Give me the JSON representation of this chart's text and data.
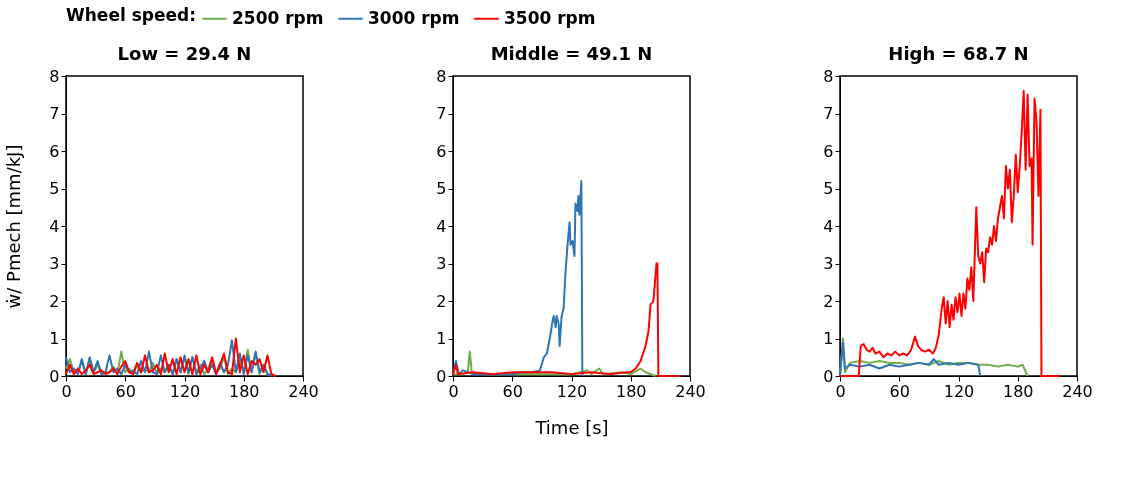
{
  "chart_data": [
    {
      "type": "line",
      "title": "Low = 29.4 N",
      "ylabel": "ẇ/ Pmech [mm/kJ]",
      "legend_title": "Wheel speed:",
      "legend": "top",
      "grid": false,
      "xlim": [
        0,
        240
      ],
      "xticks": [
        0,
        60,
        120,
        180,
        240
      ],
      "ylim": [
        0,
        8
      ],
      "yticks": [
        0,
        1,
        2,
        3,
        4,
        5,
        6,
        7,
        8
      ],
      "series": [
        {
          "name": "2500 rpm",
          "color": "#70ad47",
          "x": [
            0,
            4,
            8,
            12,
            16,
            20,
            24,
            28,
            32,
            36,
            40,
            44,
            48,
            52,
            56,
            60,
            64,
            68,
            72,
            76,
            80,
            84,
            88,
            92,
            96,
            100,
            104,
            108,
            112,
            116,
            120,
            124,
            128,
            132,
            136,
            140,
            144,
            148,
            152,
            156,
            160,
            164,
            168,
            172,
            176,
            180,
            184,
            188,
            192,
            196,
            200,
            204,
            208,
            212
          ],
          "values": [
            0.2,
            0.45,
            0.1,
            0.1,
            0.4,
            0.05,
            0.45,
            0.1,
            0.3,
            0.05,
            0.1,
            0.1,
            0.25,
            0.05,
            0.65,
            0.1,
            0.2,
            0.05,
            0.3,
            0.1,
            0.2,
            0.1,
            0.35,
            0.05,
            0.2,
            0.1,
            0.3,
            0.05,
            0.45,
            0.1,
            0.5,
            0.05,
            0.5,
            0.1,
            0.3,
            0.05,
            0.2,
            0.45,
            0.1,
            0.2,
            0.5,
            0.05,
            0.2,
            0.1,
            0.4,
            0.1,
            0.7,
            0.1,
            0.6,
            0.05,
            0.3,
            0.05,
            0.05,
            0
          ]
        },
        {
          "name": "3000 rpm",
          "color": "#2e75b6",
          "x": [
            0,
            4,
            8,
            12,
            16,
            20,
            24,
            28,
            32,
            36,
            40,
            44,
            48,
            52,
            56,
            60,
            64,
            68,
            72,
            76,
            80,
            84,
            88,
            92,
            96,
            100,
            104,
            108,
            112,
            116,
            120,
            124,
            128,
            132,
            136,
            140,
            144,
            148,
            152,
            156,
            160,
            164,
            168,
            172,
            176,
            180,
            184,
            188,
            192,
            196,
            200,
            204,
            208
          ],
          "values": [
            0.5,
            0.1,
            0.2,
            0.05,
            0.45,
            0.05,
            0.5,
            0.1,
            0.4,
            0.05,
            0.1,
            0.55,
            0.1,
            0.2,
            0.05,
            0.3,
            0.1,
            0.15,
            0.05,
            0.4,
            0.1,
            0.65,
            0.1,
            0.05,
            0.55,
            0.1,
            0.3,
            0.05,
            0.45,
            0.1,
            0.55,
            0.1,
            0.5,
            0.05,
            0.2,
            0.4,
            0.1,
            0.3,
            0.05,
            0.35,
            0.1,
            0.3,
            0.95,
            0.1,
            0.6,
            0.05,
            0.55,
            0.1,
            0.65,
            0.1,
            0.3,
            0.05,
            0
          ]
        },
        {
          "name": "3500 rpm",
          "color": "#ff0000",
          "x": [
            0,
            4,
            8,
            12,
            16,
            20,
            24,
            28,
            32,
            36,
            40,
            44,
            48,
            52,
            56,
            60,
            64,
            68,
            72,
            76,
            80,
            84,
            88,
            92,
            96,
            100,
            104,
            108,
            112,
            116,
            120,
            124,
            128,
            132,
            136,
            140,
            144,
            148,
            152,
            156,
            160,
            164,
            168,
            172,
            176,
            180,
            184,
            188,
            192,
            196,
            200,
            204,
            208,
            212
          ],
          "values": [
            0.05,
            0.3,
            0.05,
            0.2,
            0.05,
            0.15,
            0.3,
            0.05,
            0.1,
            0.15,
            0.05,
            0.1,
            0.2,
            0.05,
            0.25,
            0.4,
            0.1,
            0.05,
            0.35,
            0.1,
            0.55,
            0.1,
            0.15,
            0.3,
            0.05,
            0.6,
            0.1,
            0.45,
            0.05,
            0.5,
            0.1,
            0.45,
            0.05,
            0.55,
            0.05,
            0.3,
            0.1,
            0.5,
            0.05,
            0.3,
            0.6,
            0.1,
            0.05,
            1.0,
            0.1,
            0.55,
            0.05,
            0.4,
            0.3,
            0.45,
            0.1,
            0.55,
            0.05,
            0
          ]
        }
      ]
    },
    {
      "type": "line",
      "title": "Middle = 49.1 N",
      "xlabel": "Time [s]",
      "legend": "top",
      "grid": false,
      "xlim": [
        0,
        240
      ],
      "xticks": [
        0,
        60,
        120,
        180,
        240
      ],
      "ylim": [
        0,
        8
      ],
      "yticks": [
        0,
        1,
        2,
        3,
        4,
        5,
        6,
        7,
        8
      ],
      "series": [
        {
          "name": "2500 rpm",
          "color": "#70ad47",
          "x": [
            0,
            10,
            15,
            17,
            19,
            30,
            60,
            90,
            120,
            136,
            140,
            148,
            152,
            170,
            180,
            190,
            195,
            205
          ],
          "values": [
            0.05,
            0.05,
            0.1,
            0.65,
            0.1,
            0.05,
            0.05,
            0.05,
            0.05,
            0.15,
            0.05,
            0.2,
            0.05,
            0.1,
            0.05,
            0.2,
            0.1,
            0
          ]
        },
        {
          "name": "3000 rpm",
          "color": "#2e75b6",
          "x": [
            0,
            3,
            6,
            10,
            20,
            30,
            40,
            50,
            60,
            70,
            80,
            88,
            92,
            95,
            98,
            101,
            102,
            104,
            105,
            107,
            108,
            110,
            112,
            114,
            116,
            118,
            119,
            121,
            123,
            124,
            126,
            127,
            128,
            130,
            131
          ],
          "values": [
            0.05,
            0.4,
            0.05,
            0.15,
            0.05,
            0.05,
            0.05,
            0.05,
            0.05,
            0.1,
            0.1,
            0.15,
            0.5,
            0.6,
            1.0,
            1.5,
            1.6,
            1.3,
            1.6,
            1.4,
            0.8,
            1.6,
            1.8,
            2.8,
            3.5,
            4.1,
            3.5,
            3.6,
            3.2,
            4.6,
            4.4,
            4.8,
            4.3,
            5.2,
            0
          ]
        },
        {
          "name": "3500 rpm",
          "color": "#ff0000",
          "x": [
            0,
            3,
            5,
            20,
            40,
            60,
            80,
            100,
            120,
            140,
            160,
            175,
            180,
            185,
            190,
            195,
            198,
            200,
            203,
            206,
            207,
            208,
            230
          ],
          "values": [
            0.05,
            0.3,
            0.05,
            0.1,
            0.05,
            0.1,
            0.1,
            0.1,
            0.05,
            0.1,
            0.05,
            0.1,
            0.1,
            0.2,
            0.4,
            0.8,
            1.2,
            1.9,
            2.0,
            3.0,
            3.0,
            0,
            0
          ]
        }
      ]
    },
    {
      "type": "line",
      "title": "High = 68.7 N",
      "legend": "top",
      "grid": false,
      "xlim": [
        0,
        240
      ],
      "xticks": [
        0,
        60,
        120,
        180,
        240
      ],
      "ylim": [
        0,
        8
      ],
      "yticks": [
        0,
        1,
        2,
        3,
        4,
        5,
        6,
        7,
        8
      ],
      "series": [
        {
          "name": "2500 rpm",
          "color": "#70ad47",
          "x": [
            0,
            3,
            5,
            10,
            20,
            30,
            40,
            50,
            60,
            70,
            80,
            90,
            100,
            110,
            120,
            130,
            140,
            150,
            160,
            170,
            180,
            185,
            190
          ],
          "values": [
            0,
            1.0,
            0.1,
            0.35,
            0.4,
            0.35,
            0.4,
            0.35,
            0.35,
            0.3,
            0.35,
            0.3,
            0.4,
            0.3,
            0.35,
            0.35,
            0.3,
            0.3,
            0.25,
            0.3,
            0.25,
            0.3,
            0
          ]
        },
        {
          "name": "3000 rpm",
          "color": "#2e75b6",
          "x": [
            0,
            3,
            5,
            10,
            20,
            30,
            40,
            50,
            60,
            70,
            80,
            90,
            95,
            100,
            110,
            120,
            130,
            140,
            142
          ],
          "values": [
            0,
            0.9,
            0.2,
            0.3,
            0.25,
            0.3,
            0.2,
            0.3,
            0.25,
            0.3,
            0.35,
            0.3,
            0.45,
            0.3,
            0.35,
            0.3,
            0.35,
            0.3,
            0
          ]
        },
        {
          "name": "3500 rpm",
          "color": "#ff0000",
          "x": [
            0,
            19,
            21,
            24,
            27,
            30,
            33,
            36,
            40,
            44,
            48,
            52,
            56,
            60,
            64,
            68,
            72,
            76,
            79,
            82,
            86,
            90,
            94,
            97,
            100,
            103,
            105,
            107,
            109,
            111,
            113,
            115,
            117,
            119,
            121,
            123,
            125,
            127,
            129,
            131,
            133,
            135,
            138,
            140,
            142,
            144,
            146,
            148,
            150,
            152,
            154,
            156,
            158,
            160,
            162,
            164,
            166,
            168,
            170,
            172,
            174,
            176,
            178,
            180,
            182,
            184,
            186,
            188,
            190,
            192,
            194,
            195,
            197,
            199,
            201,
            203,
            204,
            223
          ],
          "values": [
            0,
            0,
            0.8,
            0.85,
            0.7,
            0.65,
            0.75,
            0.6,
            0.65,
            0.5,
            0.6,
            0.55,
            0.65,
            0.55,
            0.6,
            0.55,
            0.7,
            1.05,
            0.8,
            0.7,
            0.65,
            0.7,
            0.6,
            0.75,
            1.1,
            1.8,
            2.1,
            1.4,
            2.0,
            1.3,
            1.9,
            1.5,
            2.1,
            1.7,
            2.2,
            1.6,
            2.2,
            1.8,
            2.6,
            2.3,
            2.9,
            2.0,
            4.5,
            3.2,
            3.0,
            3.3,
            2.5,
            3.4,
            3.3,
            3.7,
            3.5,
            4.0,
            3.6,
            4.2,
            4.5,
            4.8,
            4.2,
            5.6,
            5.0,
            5.5,
            4.1,
            4.8,
            5.9,
            4.9,
            5.6,
            6.5,
            7.6,
            5.5,
            7.5,
            5.6,
            5.8,
            3.5,
            7.4,
            6.8,
            4.8,
            7.1,
            0,
            0
          ]
        }
      ]
    }
  ]
}
